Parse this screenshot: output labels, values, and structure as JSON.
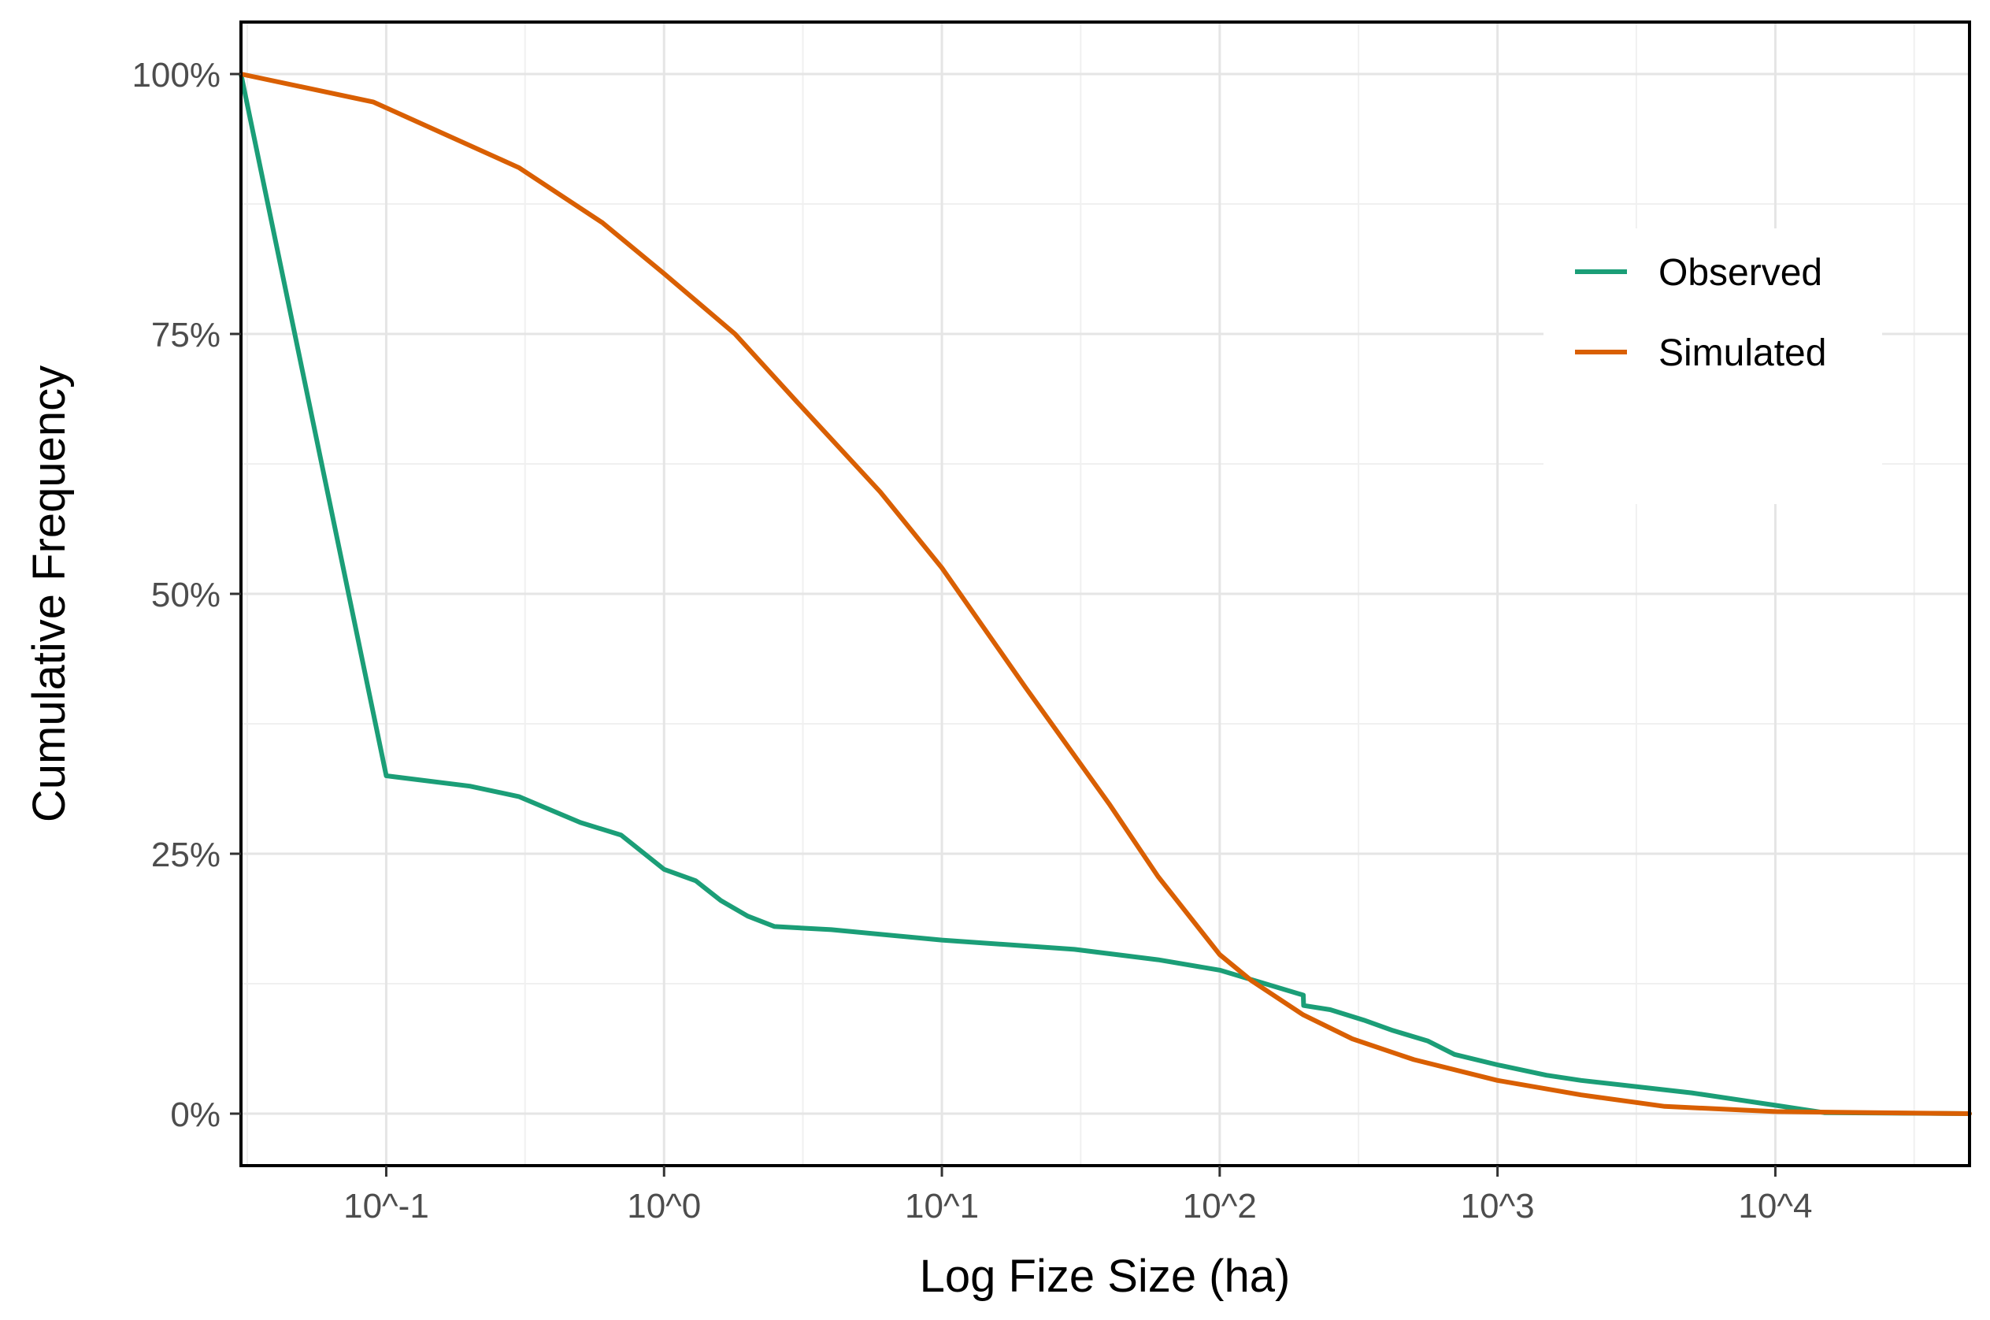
{
  "chart_data": {
    "type": "line",
    "title": "",
    "xlabel": "Log Fize Size (ha)",
    "ylabel": "Cumulative Frequency",
    "x_scale": "log10",
    "xlim": [
      0.03,
      50000
    ],
    "ylim": [
      -0.05,
      1.05
    ],
    "grid": true,
    "legend_position": "right",
    "x_ticks": [
      {
        "value": 0.1,
        "label": "10^-1"
      },
      {
        "value": 1,
        "label": "10^0"
      },
      {
        "value": 10,
        "label": "10^1"
      },
      {
        "value": 100,
        "label": "10^2"
      },
      {
        "value": 1000,
        "label": "10^3"
      },
      {
        "value": 10000,
        "label": "10^4"
      }
    ],
    "x_minor_ticks": [
      0.0316,
      0.316,
      3.16,
      31.6,
      316,
      3160,
      31600
    ],
    "y_ticks": [
      {
        "value": 0,
        "label": "0%"
      },
      {
        "value": 0.25,
        "label": "25%"
      },
      {
        "value": 0.5,
        "label": "50%"
      },
      {
        "value": 0.75,
        "label": "75%"
      },
      {
        "value": 1,
        "label": "100%"
      }
    ],
    "y_minor_ticks": [
      0.125,
      0.375,
      0.625,
      0.875
    ],
    "series": [
      {
        "name": "Observed",
        "color": "#1b9e77",
        "points": [
          [
            0.03,
            1.0
          ],
          [
            0.1,
            0.325
          ],
          [
            0.2,
            0.315
          ],
          [
            0.3,
            0.305
          ],
          [
            0.5,
            0.28
          ],
          [
            0.7,
            0.268
          ],
          [
            1.0,
            0.235
          ],
          [
            1.3,
            0.224
          ],
          [
            1.6,
            0.205
          ],
          [
            2.0,
            0.19
          ],
          [
            2.5,
            0.18
          ],
          [
            4,
            0.177
          ],
          [
            10,
            0.167
          ],
          [
            30,
            0.158
          ],
          [
            60,
            0.148
          ],
          [
            100,
            0.138
          ],
          [
            200,
            0.114
          ],
          [
            200.5,
            0.104
          ],
          [
            250,
            0.1
          ],
          [
            330,
            0.09
          ],
          [
            420,
            0.08
          ],
          [
            560,
            0.07
          ],
          [
            700,
            0.057
          ],
          [
            1000,
            0.047
          ],
          [
            1500,
            0.037
          ],
          [
            2000,
            0.032
          ],
          [
            5000,
            0.02
          ],
          [
            10000,
            0.008
          ],
          [
            15000,
            0.001
          ],
          [
            50000,
            0.0
          ]
        ]
      },
      {
        "name": "Simulated",
        "color": "#d95f02",
        "points": [
          [
            0.03,
            1.0
          ],
          [
            0.09,
            0.973
          ],
          [
            0.3,
            0.91
          ],
          [
            0.6,
            0.857
          ],
          [
            1.0,
            0.808
          ],
          [
            1.8,
            0.75
          ],
          [
            3.0,
            0.685
          ],
          [
            6.0,
            0.598
          ],
          [
            10,
            0.525
          ],
          [
            20,
            0.41
          ],
          [
            40,
            0.298
          ],
          [
            60,
            0.228
          ],
          [
            100,
            0.153
          ],
          [
            130,
            0.128
          ],
          [
            200,
            0.095
          ],
          [
            300,
            0.072
          ],
          [
            500,
            0.052
          ],
          [
            1000,
            0.032
          ],
          [
            2000,
            0.018
          ],
          [
            4000,
            0.007
          ],
          [
            10000,
            0.002
          ],
          [
            50000,
            0.0
          ]
        ]
      }
    ]
  }
}
